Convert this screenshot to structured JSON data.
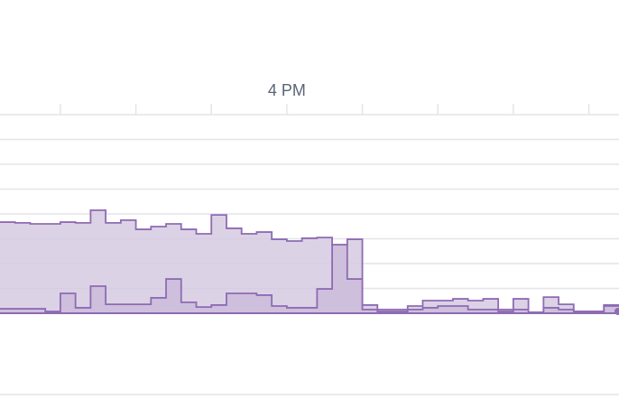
{
  "chart_data": {
    "type": "step-area",
    "x": [
      0,
      1,
      2,
      3,
      4,
      5,
      6,
      7,
      8,
      9,
      10,
      11,
      12,
      13,
      14,
      15,
      16,
      17,
      18,
      19,
      20,
      21,
      22,
      23,
      24,
      25,
      26,
      27,
      28,
      29,
      30,
      31,
      32,
      33,
      34,
      35,
      36,
      37,
      38,
      39,
      40
    ],
    "series": [
      {
        "color": "#8e6bb3",
        "fill": "#d6cae2",
        "values": [
          3.67,
          3.64,
          3.6,
          3.6,
          3.67,
          3.64,
          4.15,
          3.64,
          3.75,
          3.38,
          3.49,
          3.6,
          3.38,
          3.2,
          3.96,
          3.42,
          3.2,
          3.27,
          2.98,
          2.91,
          3.02,
          3.05,
          2.76,
          2.98,
          0.33,
          0.15,
          0.15,
          0.29,
          0.51,
          0.51,
          0.58,
          0.51,
          0.58,
          0.15,
          0.58,
          0.04,
          0.65,
          0.36,
          0.07,
          0.07,
          0.33
        ]
      },
      {
        "color": "#8e6bb3",
        "fill": "#cbbcdb",
        "values": [
          0.18,
          0.18,
          0.18,
          0.07,
          0.8,
          0.22,
          1.09,
          0.36,
          0.36,
          0.36,
          0.62,
          1.38,
          0.44,
          0.25,
          0.33,
          0.8,
          0.8,
          0.73,
          0.29,
          0.22,
          0.22,
          0.98,
          2.76,
          1.38,
          0.15,
          0.07,
          0.07,
          0.15,
          0.22,
          0.29,
          0.29,
          0.15,
          0.15,
          0.07,
          0.15,
          0.04,
          0.22,
          0.15,
          0.07,
          0.07,
          0.29
        ]
      }
    ],
    "xlim": [
      0,
      41
    ],
    "xticks": [
      {
        "value": 4,
        "label": null
      },
      {
        "value": 9,
        "label": null
      },
      {
        "value": 14,
        "label": null
      },
      {
        "value": 19,
        "label": "4 PM"
      },
      {
        "value": 24,
        "label": null
      },
      {
        "value": 29,
        "label": null
      },
      {
        "value": 34,
        "label": null
      },
      {
        "value": 39,
        "label": null
      }
    ],
    "ylim": [
      0,
      8
    ],
    "yticks": [
      0,
      1,
      2,
      3,
      4,
      5,
      6,
      7,
      8
    ],
    "grid": true
  }
}
